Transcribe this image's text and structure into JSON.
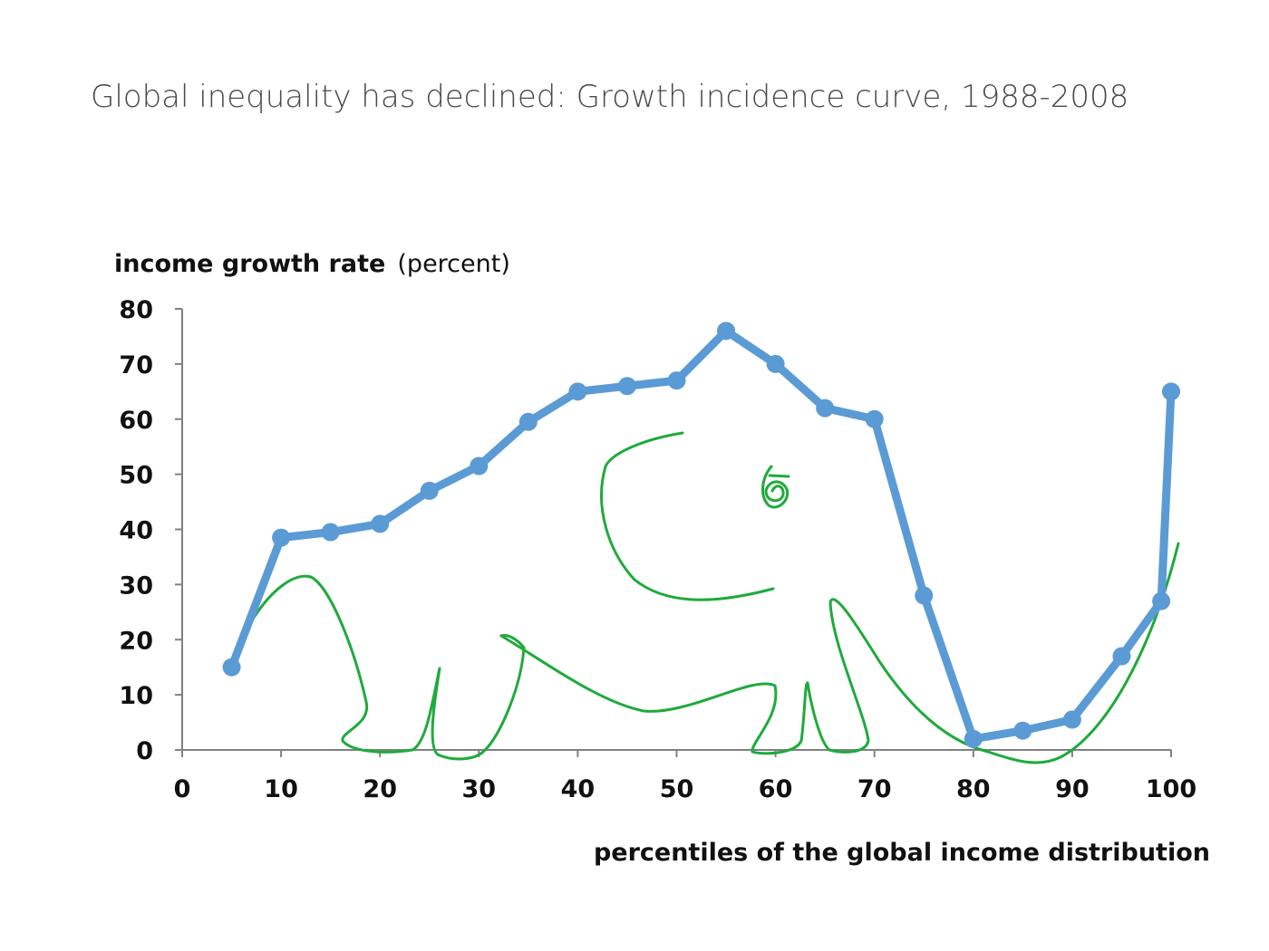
{
  "colors": {
    "series": "#5b9bd5",
    "sketch": "#1faa3c"
  },
  "chart_data": {
    "type": "line",
    "title": "Global inequality has declined: Growth incidence curve, 1988-2008",
    "ylabel_bold": "income growth rate",
    "ylabel_normal": "(percent)",
    "xlabel": "percentiles of the global income distribution",
    "xlim": [
      0,
      100
    ],
    "ylim": [
      0,
      80
    ],
    "xticks": [
      0,
      10,
      20,
      30,
      40,
      50,
      60,
      70,
      80,
      90,
      100
    ],
    "yticks": [
      0,
      10,
      20,
      30,
      40,
      50,
      60,
      70,
      80
    ],
    "grid": false,
    "legend": "none",
    "series": [
      {
        "x": [
          5,
          10,
          15,
          20,
          25,
          30,
          35,
          40,
          45,
          50,
          55,
          60,
          65,
          70,
          75,
          80,
          85,
          90,
          95,
          99,
          100
        ],
        "y": [
          15,
          38.5,
          39.5,
          41,
          47,
          51.5,
          59.5,
          65,
          66,
          67,
          76,
          70,
          62,
          60,
          28,
          2,
          3.5,
          5.5,
          17,
          27,
          65
        ]
      }
    ],
    "annotation": "elephant-sketch"
  }
}
